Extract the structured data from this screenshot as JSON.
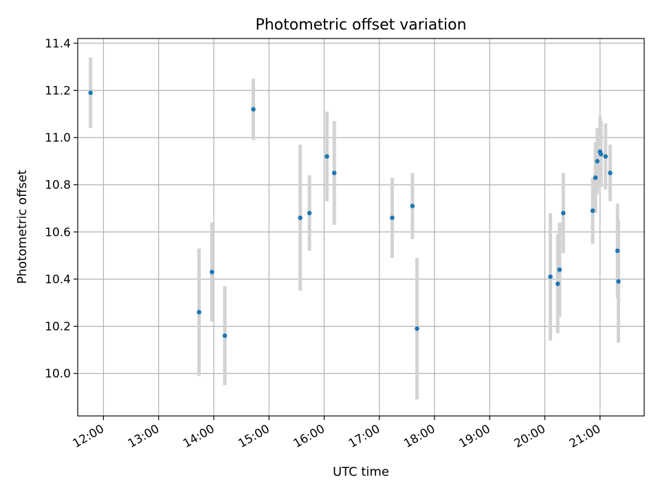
{
  "chart_data": {
    "type": "scatter",
    "title": "Photometric offset variation",
    "xlabel": "UTC time",
    "ylabel": "Photometric offset",
    "x_axis_kind": "time of day",
    "xlim": [
      "11:32",
      "21:48"
    ],
    "ylim": [
      9.82,
      11.42
    ],
    "xticks": [
      "12:00",
      "13:00",
      "14:00",
      "15:00",
      "16:00",
      "17:00",
      "18:00",
      "19:00",
      "20:00",
      "21:00"
    ],
    "yticks": [
      "10.0",
      "10.2",
      "10.4",
      "10.6",
      "10.8",
      "11.0",
      "11.2",
      "11.4"
    ],
    "grid": true,
    "legend": "none",
    "colors": {
      "point": "#1f77b4",
      "errorbar": "#d3d3d3",
      "grid": "#b0b0b0"
    },
    "series": [
      {
        "points": [
          {
            "time": "11:46",
            "y": 11.19,
            "err": 0.15
          },
          {
            "time": "13:44",
            "y": 10.26,
            "err": 0.27
          },
          {
            "time": "13:58",
            "y": 10.43,
            "err": 0.21
          },
          {
            "time": "14:12",
            "y": 10.16,
            "err": 0.21
          },
          {
            "time": "14:43",
            "y": 11.12,
            "err": 0.13
          },
          {
            "time": "15:34",
            "y": 10.66,
            "err": 0.31
          },
          {
            "time": "15:44",
            "y": 10.68,
            "err": 0.16
          },
          {
            "time": "16:03",
            "y": 10.92,
            "err": 0.19
          },
          {
            "time": "16:11",
            "y": 10.85,
            "err": 0.22
          },
          {
            "time": "17:14",
            "y": 10.66,
            "err": 0.17
          },
          {
            "time": "17:36",
            "y": 10.71,
            "err": 0.14
          },
          {
            "time": "17:41",
            "y": 10.19,
            "err": 0.3
          },
          {
            "time": "20:06",
            "y": 10.41,
            "err": 0.27
          },
          {
            "time": "20:14",
            "y": 10.38,
            "err": 0.21
          },
          {
            "time": "20:16",
            "y": 10.44,
            "err": 0.2
          },
          {
            "time": "20:20",
            "y": 10.68,
            "err": 0.17
          },
          {
            "time": "20:52",
            "y": 10.69,
            "err": 0.14
          },
          {
            "time": "20:55",
            "y": 10.83,
            "err": 0.15
          },
          {
            "time": "20:57",
            "y": 10.9,
            "err": 0.14
          },
          {
            "time": "21:00",
            "y": 10.94,
            "err": 0.15
          },
          {
            "time": "21:01",
            "y": 10.93,
            "err": 0.14
          },
          {
            "time": "21:06",
            "y": 10.92,
            "err": 0.14
          },
          {
            "time": "21:11",
            "y": 10.85,
            "err": 0.12
          },
          {
            "time": "21:19",
            "y": 10.52,
            "err": 0.2
          },
          {
            "time": "21:20",
            "y": 10.39,
            "err": 0.26
          }
        ]
      }
    ]
  }
}
